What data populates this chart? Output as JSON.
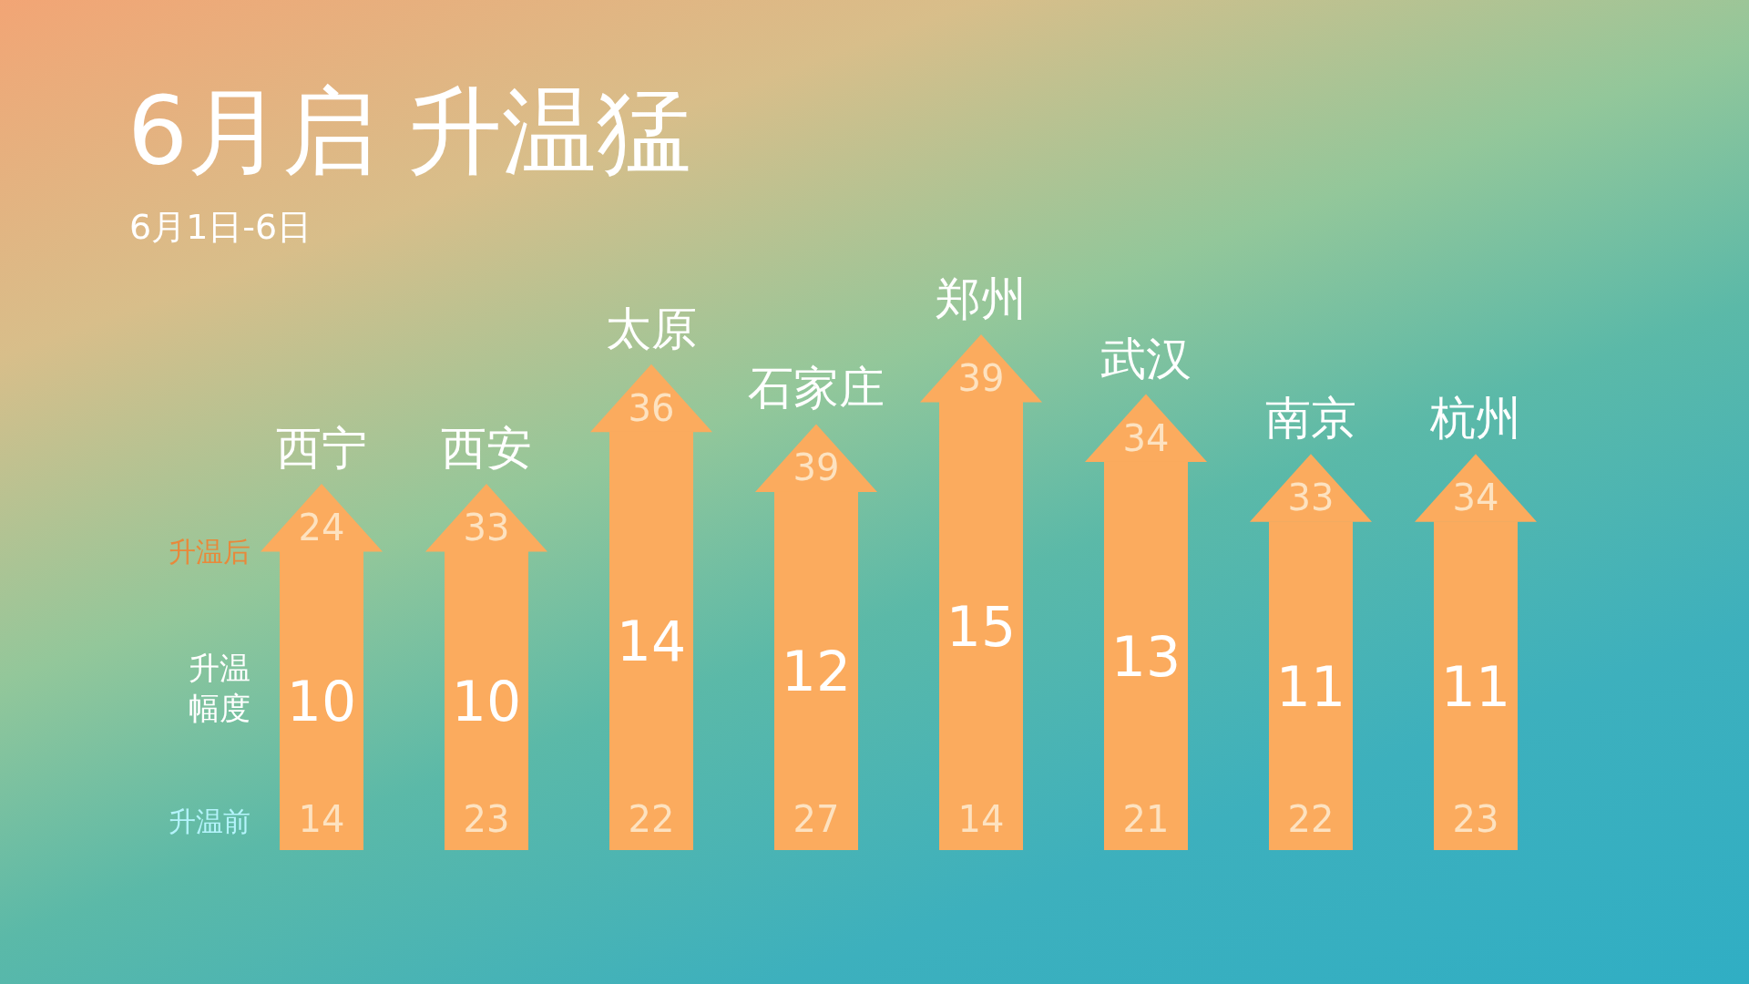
{
  "chart_data": {
    "type": "bar",
    "title": "6月启  升温猛",
    "subtitle": "6月1日-6日",
    "categories": [
      "西宁",
      "西安",
      "太原",
      "石家庄",
      "郑州",
      "武汉",
      "南京",
      "杭州"
    ],
    "series": [
      {
        "name": "升温幅度",
        "color": "#fbab5e",
        "values": [
          10,
          10,
          14,
          12,
          15,
          13,
          11,
          11
        ]
      }
    ],
    "data_labels": true,
    "annotations": [
      "升温后",
      "24",
      "33",
      "36",
      "39",
      "39",
      "34",
      "33",
      "34",
      "升温前",
      "14",
      "23",
      "22",
      "27",
      "14",
      "21",
      "22",
      "23"
    ]
  }
}
